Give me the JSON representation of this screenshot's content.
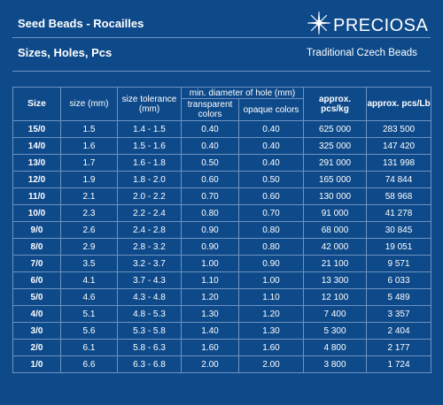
{
  "header": {
    "title": "Seed Beads - Rocailles",
    "subtitle": "Sizes, Holes, Pcs",
    "brand": "PRECIOSA",
    "tagline": "Traditional Czech Beads",
    "brand_icon": "star-icon"
  },
  "table": {
    "headers": {
      "size": "Size",
      "size_mm": "size (mm)",
      "tolerance": "size tolerance (mm)",
      "hole_group": "min. diameter of hole (mm)",
      "transparent": "transparent colors",
      "opaque": "opaque colors",
      "pcs_kg": "approx. pcs/kg",
      "pcs_lb": "approx. pcs/Lb"
    },
    "rows": [
      {
        "size": "15/0",
        "mm": "1.5",
        "tol": "1.4 - 1.5",
        "trans": "0.40",
        "opaque": "0.40",
        "kg": "625 000",
        "lb": "283 500"
      },
      {
        "size": "14/0",
        "mm": "1.6",
        "tol": "1.5 - 1.6",
        "trans": "0.40",
        "opaque": "0.40",
        "kg": "325 000",
        "lb": "147 420"
      },
      {
        "size": "13/0",
        "mm": "1.7",
        "tol": "1.6 - 1.8",
        "trans": "0.50",
        "opaque": "0.40",
        "kg": "291 000",
        "lb": "131 998"
      },
      {
        "size": "12/0",
        "mm": "1.9",
        "tol": "1.8 - 2.0",
        "trans": "0.60",
        "opaque": "0.50",
        "kg": "165 000",
        "lb": "74 844"
      },
      {
        "size": "11/0",
        "mm": "2.1",
        "tol": "2.0 - 2.2",
        "trans": "0.70",
        "opaque": "0.60",
        "kg": "130 000",
        "lb": "58 968"
      },
      {
        "size": "10/0",
        "mm": "2.3",
        "tol": "2.2 - 2.4",
        "trans": "0.80",
        "opaque": "0.70",
        "kg": "91 000",
        "lb": "41 278"
      },
      {
        "size": "9/0",
        "mm": "2.6",
        "tol": "2.4 - 2.8",
        "trans": "0.90",
        "opaque": "0.80",
        "kg": "68 000",
        "lb": "30 845"
      },
      {
        "size": "8/0",
        "mm": "2.9",
        "tol": "2.8 - 3.2",
        "trans": "0.90",
        "opaque": "0.80",
        "kg": "42 000",
        "lb": "19 051"
      },
      {
        "size": "7/0",
        "mm": "3.5",
        "tol": "3.2 - 3.7",
        "trans": "1.00",
        "opaque": "0.90",
        "kg": "21 100",
        "lb": "9 571"
      },
      {
        "size": "6/0",
        "mm": "4.1",
        "tol": "3.7 - 4.3",
        "trans": "1.10",
        "opaque": "1.00",
        "kg": "13 300",
        "lb": "6 033"
      },
      {
        "size": "5/0",
        "mm": "4.6",
        "tol": "4.3 - 4.8",
        "trans": "1.20",
        "opaque": "1.10",
        "kg": "12 100",
        "lb": "5 489"
      },
      {
        "size": "4/0",
        "mm": "5.1",
        "tol": "4.8 - 5.3",
        "trans": "1.30",
        "opaque": "1.20",
        "kg": "7 400",
        "lb": "3 357"
      },
      {
        "size": "3/0",
        "mm": "5.6",
        "tol": "5.3 - 5.8",
        "trans": "1.40",
        "opaque": "1.30",
        "kg": "5 300",
        "lb": "2 404"
      },
      {
        "size": "2/0",
        "mm": "6.1",
        "tol": "5.8 - 6.3",
        "trans": "1.60",
        "opaque": "1.60",
        "kg": "4 800",
        "lb": "2 177"
      },
      {
        "size": "1/0",
        "mm": "6.6",
        "tol": "6.3 - 6.8",
        "trans": "2.00",
        "opaque": "2.00",
        "kg": "3 800",
        "lb": "1 724"
      }
    ]
  },
  "colors": {
    "background": "#0e4a8a",
    "text": "#ffffff",
    "rule": "#6d93c0"
  }
}
